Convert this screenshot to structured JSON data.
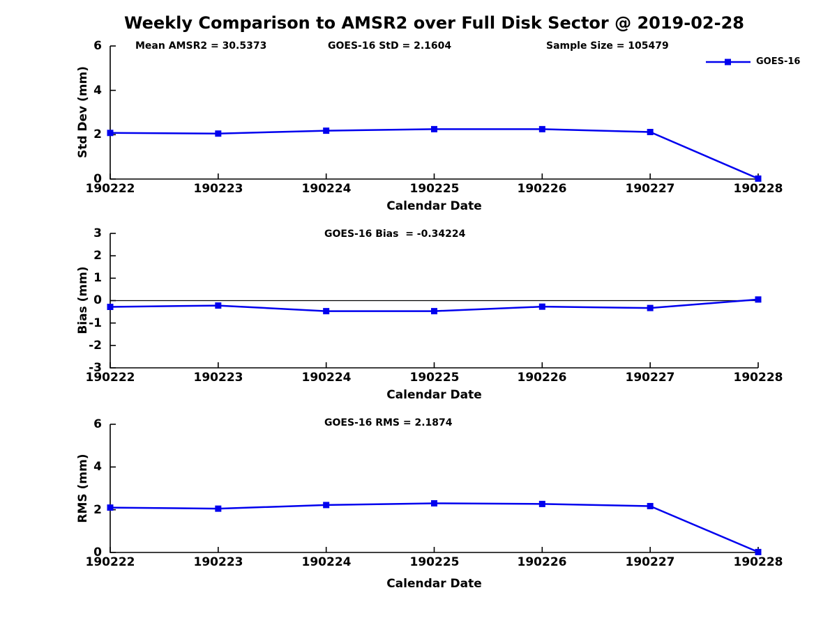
{
  "figure": {
    "title": "Weekly Comparison to AMSR2 over Full Disk Sector @ 2019-02-28",
    "legend": {
      "label": "GOES-16",
      "position": "top-right-outside"
    },
    "colors": {
      "line": "#0000EE",
      "axis": "#000000",
      "text": "#000000",
      "background": "#FFFFFF"
    }
  },
  "chart_data": [
    {
      "type": "line",
      "series_name": "GOES-16",
      "annotations": [
        "Mean AMSR2 = 30.5373",
        "GOES-16 StD = 2.1604",
        "Sample Size = 105479"
      ],
      "xlabel": "Calendar Date",
      "ylabel": "Std Dev (mm)",
      "categories": [
        "190222",
        "190223",
        "190224",
        "190225",
        "190226",
        "190227",
        "190228"
      ],
      "values": [
        2.08,
        2.05,
        2.18,
        2.25,
        2.25,
        2.12,
        0.02
      ],
      "ylim": [
        0,
        6
      ],
      "yticks": [
        0,
        2,
        4,
        6
      ],
      "ytick_labels": [
        "0",
        "2",
        "4",
        "6"
      ],
      "grid": false,
      "marker": "square"
    },
    {
      "type": "line",
      "series_name": "GOES-16",
      "title": "GOES-16 Bias  = -0.34224",
      "xlabel": "Calendar Date",
      "ylabel": "Bias (mm)",
      "categories": [
        "190222",
        "190223",
        "190224",
        "190225",
        "190226",
        "190227",
        "190228"
      ],
      "values": [
        -0.28,
        -0.22,
        -0.47,
        -0.47,
        -0.27,
        -0.33,
        0.05
      ],
      "ylim": [
        -3,
        3
      ],
      "yticks": [
        -3,
        -2,
        -1,
        0,
        1,
        2,
        3
      ],
      "ytick_labels": [
        "-3",
        "-2",
        "-1",
        "0",
        "1",
        "2",
        "3"
      ],
      "zero_line": true,
      "grid": false,
      "marker": "square"
    },
    {
      "type": "line",
      "series_name": "GOES-16",
      "title": "GOES-16 RMS = 2.1874",
      "xlabel": "Calendar Date",
      "ylabel": "RMS (mm)",
      "categories": [
        "190222",
        "190223",
        "190224",
        "190225",
        "190226",
        "190227",
        "190228"
      ],
      "values": [
        2.1,
        2.05,
        2.22,
        2.3,
        2.27,
        2.17,
        0.02
      ],
      "ylim": [
        0,
        6
      ],
      "yticks": [
        0,
        2,
        4,
        6
      ],
      "ytick_labels": [
        "0",
        "2",
        "4",
        "6"
      ],
      "grid": false,
      "marker": "square"
    }
  ]
}
